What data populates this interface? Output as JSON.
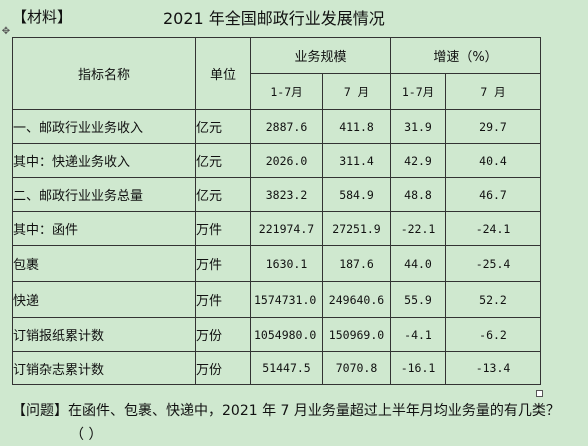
{
  "header_label": "【材料】",
  "title": "2021 年全国邮政行业发展情况",
  "table": {
    "col_indicator": "指标名称",
    "col_unit": "单位",
    "col_scale": "业务规模",
    "col_growth": "增速（%）",
    "sub_jan_jul": "1-7月",
    "sub_jul": "7 月",
    "rows": [
      {
        "name": "一、邮政行业业务收入",
        "unit": "亿元",
        "scale_1_7": "2887.6",
        "scale_7": "411.8",
        "growth_1_7": "31.9",
        "growth_7": "29.7"
      },
      {
        "name": "其中：快递业务收入",
        "unit": "亿元",
        "scale_1_7": "2026.0",
        "scale_7": "311.4",
        "growth_1_7": "42.9",
        "growth_7": "40.4"
      },
      {
        "name": "二、邮政行业业务总量",
        "unit": "亿元",
        "scale_1_7": "3823.2",
        "scale_7": "584.9",
        "growth_1_7": "48.8",
        "growth_7": "46.7"
      },
      {
        "name": "其中：函件",
        "unit": "万件",
        "scale_1_7": "221974.7",
        "scale_7": "27251.9",
        "growth_1_7": "-22.1",
        "growth_7": "-24.1"
      },
      {
        "name": "包裹",
        "unit": "万件",
        "scale_1_7": "1630.1",
        "scale_7": "187.6",
        "growth_1_7": "44.0",
        "growth_7": "-25.4"
      },
      {
        "name": "快递",
        "unit": "万件",
        "scale_1_7": "1574731.0",
        "scale_7": "249640.6",
        "growth_1_7": "55.9",
        "growth_7": "52.2"
      },
      {
        "name": "订销报纸累计数",
        "unit": "万份",
        "scale_1_7": "1054980.0",
        "scale_7": "150969.0",
        "growth_1_7": "-4.1",
        "growth_7": "-6.2"
      },
      {
        "name": "订销杂志累计数",
        "unit": "万份",
        "scale_1_7": "51447.5",
        "scale_7": "7070.8",
        "growth_1_7": "-16.1",
        "growth_7": "-13.4"
      }
    ]
  },
  "question": "【问题】在函件、包裹、快递中，2021 年 7 月业务量超过上半年月均业务量的有几类？",
  "answer_blank": "（  ）",
  "icons": {
    "move_handle": "move-cross-icon",
    "resize_handle": "resize-square-icon"
  }
}
